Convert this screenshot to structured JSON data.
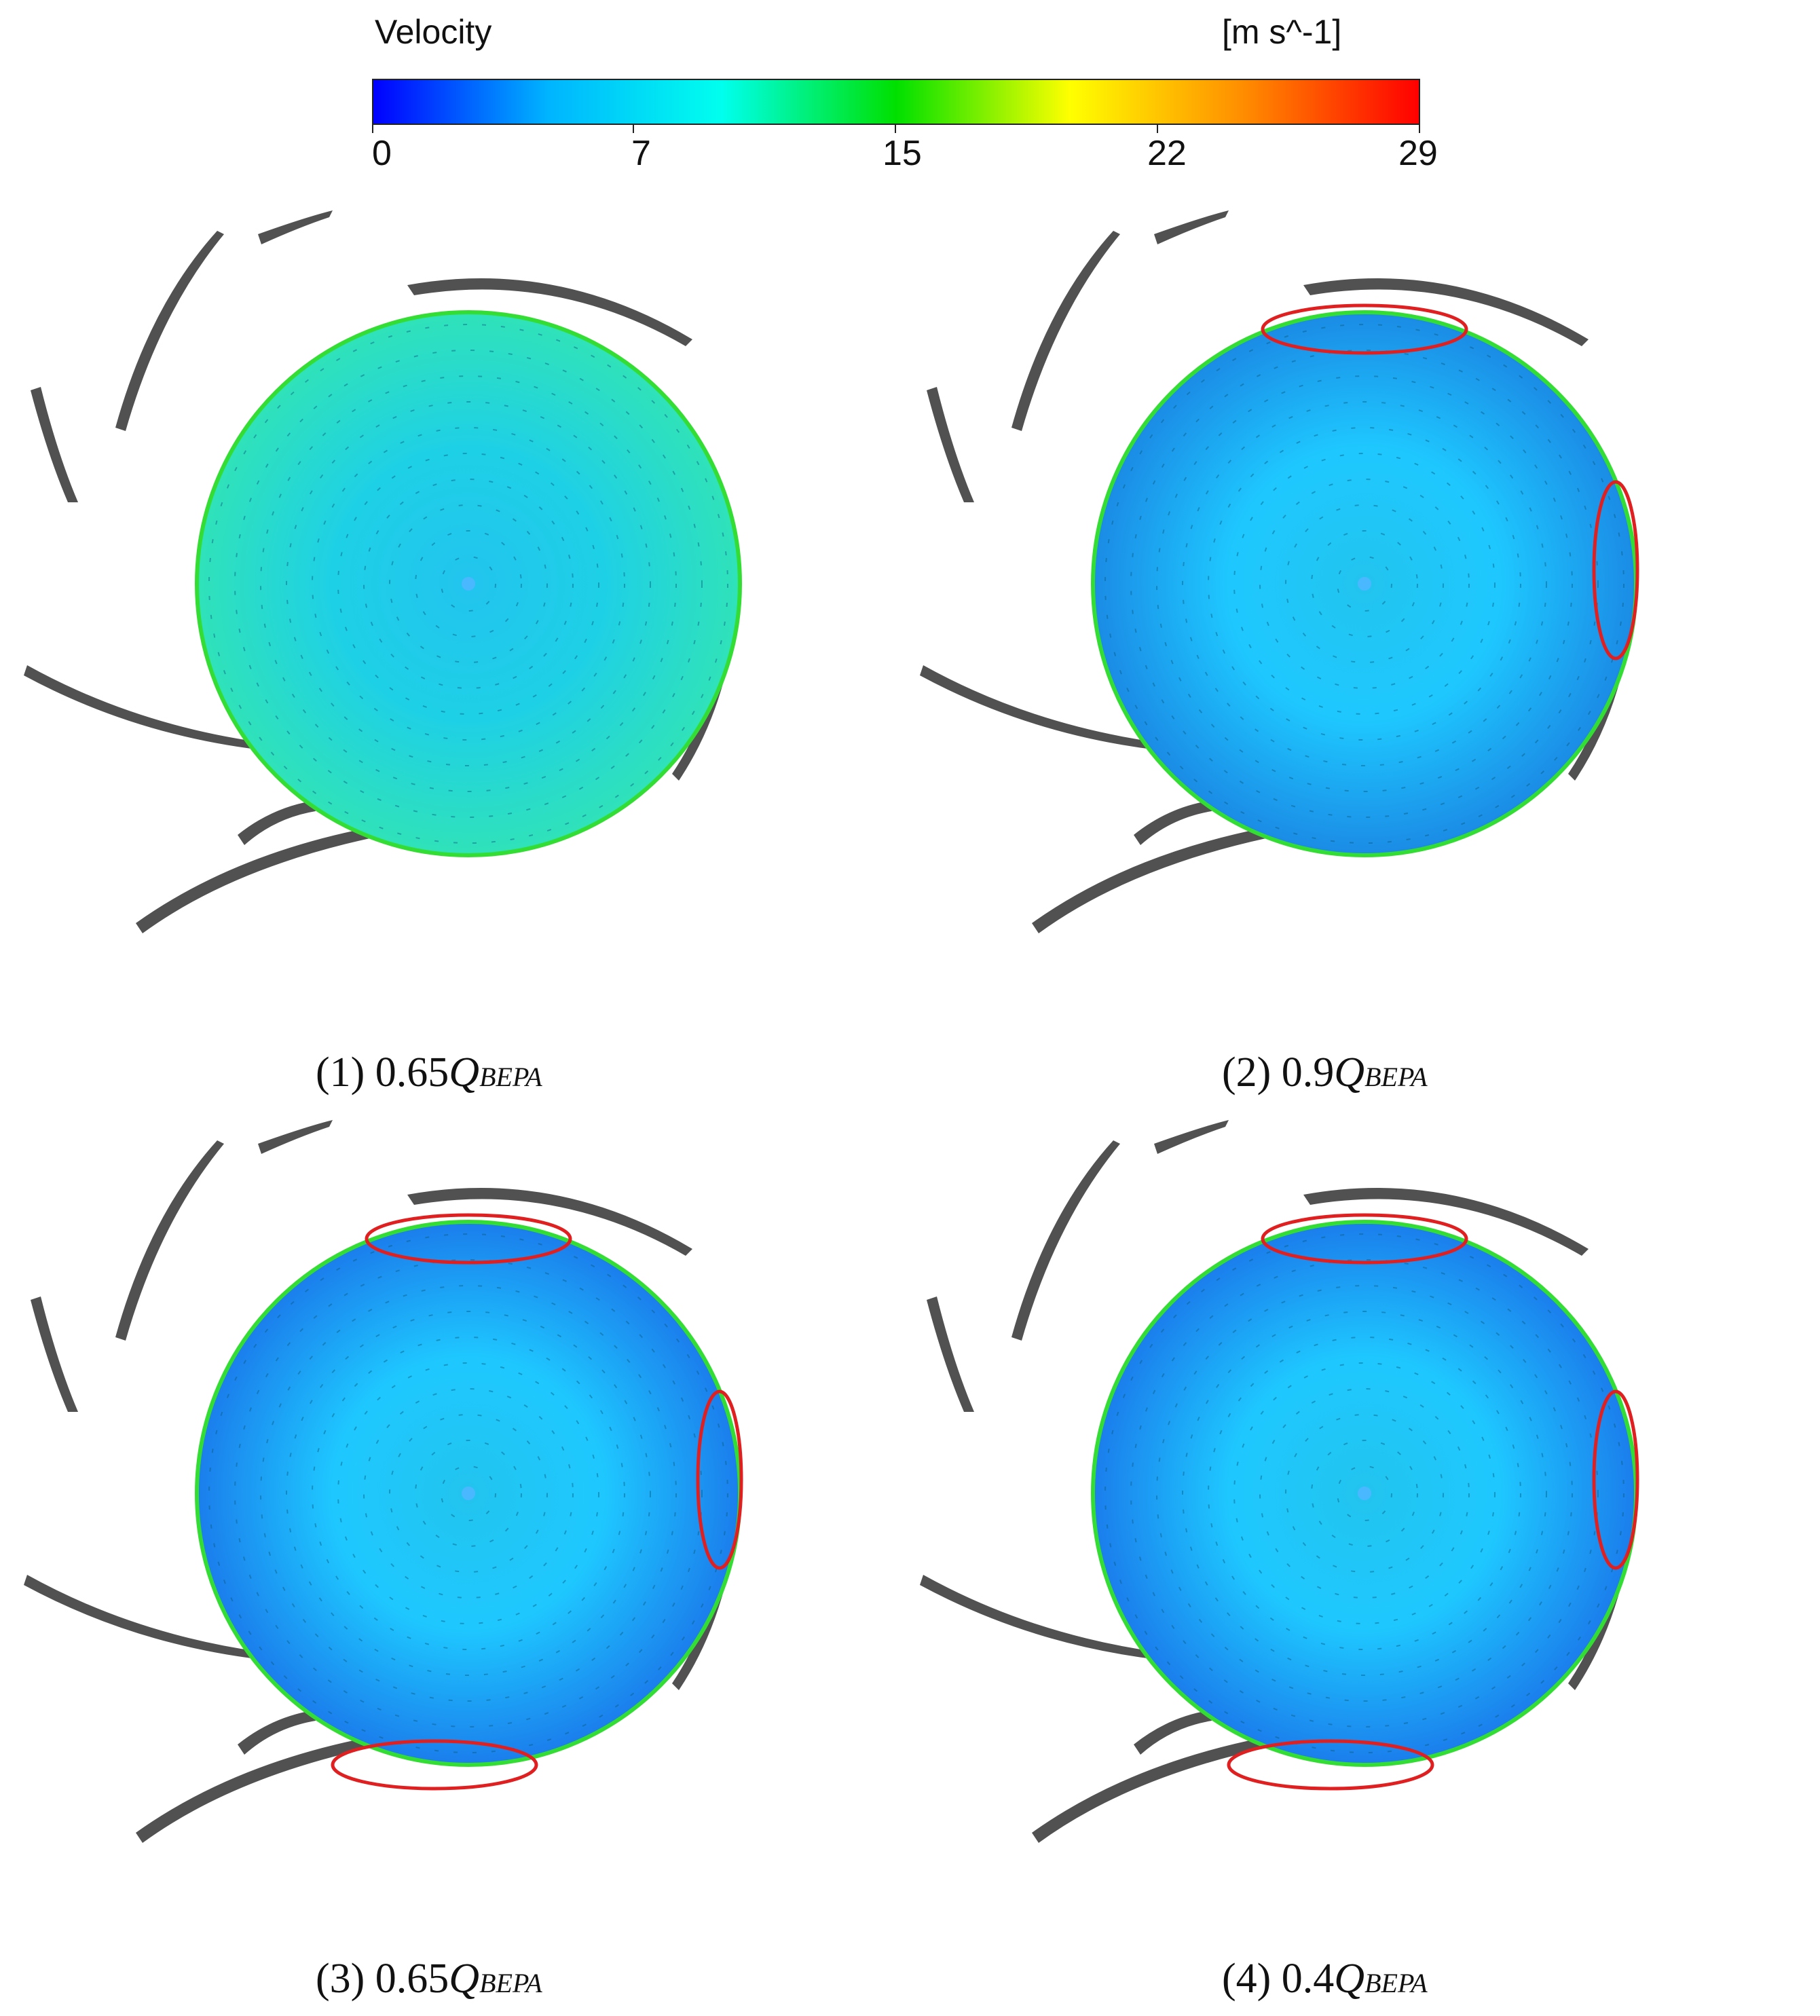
{
  "legend": {
    "title": "Velocity",
    "units": "[m s^-1]",
    "ticks": [
      "0",
      "7",
      "15",
      "22",
      "29"
    ],
    "min": 0,
    "max": 29,
    "colors": [
      "#0000ff",
      "#00b4ff",
      "#00ffee",
      "#00e000",
      "#ffff00",
      "#ff8c00",
      "#ff0000"
    ]
  },
  "panels": [
    {
      "num": "(1)",
      "value": "0.65",
      "q": "Q",
      "sub": "BEPA",
      "bg": "#1ed0e6",
      "accent": "#33e6b0",
      "highlights": []
    },
    {
      "num": "(2)",
      "value": "0.9",
      "q": "Q",
      "sub": "BEPA",
      "bg": "#1ec8ff",
      "accent": "#1a7fe0",
      "highlights": [
        "top",
        "right"
      ]
    },
    {
      "num": "(3)",
      "value": "0.65",
      "q": "Q",
      "sub": "BEPA",
      "bg": "#1ec8ff",
      "accent": "#1a6fe8",
      "highlights": [
        "top",
        "right",
        "bottom"
      ]
    },
    {
      "num": "(4)",
      "value": "0.4",
      "q": "Q",
      "sub": "BEPA",
      "bg": "#1ec8ff",
      "accent": "#1a6fe8",
      "highlights": [
        "top",
        "right",
        "bottom"
      ]
    }
  ],
  "colors": {
    "rim": "#33dd33",
    "highlight": "#e02020",
    "blade": "#333333"
  }
}
